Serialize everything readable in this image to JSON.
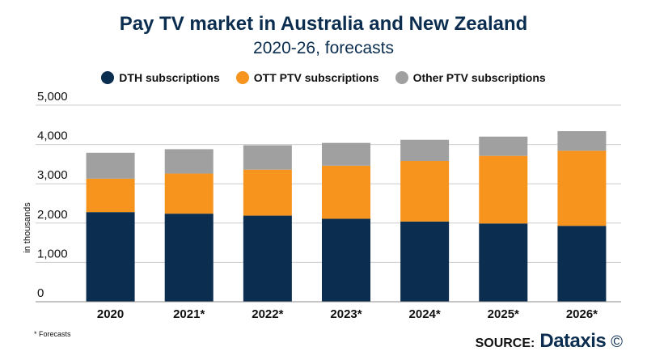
{
  "header": {
    "title": "Pay TV market in Australia and New Zealand",
    "subtitle": "2020-26, forecasts"
  },
  "chart_data": {
    "type": "bar",
    "stacked": true,
    "categories": [
      "2020",
      "2021*",
      "2022*",
      "2023*",
      "2024*",
      "2025*",
      "2026*"
    ],
    "series": [
      {
        "name": "DTH subscriptions",
        "color": "#0b2d4f",
        "values": [
          2280,
          2240,
          2190,
          2110,
          2040,
          1990,
          1930
        ]
      },
      {
        "name": "OTT PTV subscriptions",
        "color": "#f7941d",
        "values": [
          850,
          1020,
          1170,
          1350,
          1540,
          1720,
          1910
        ]
      },
      {
        "name": "Other PTV subscriptions",
        "color": "#a0a0a0",
        "values": [
          660,
          620,
          620,
          580,
          540,
          490,
          500
        ]
      }
    ],
    "ylabel": "in thousands",
    "ylim": [
      0,
      5000
    ],
    "yticks": [
      0,
      1000,
      2000,
      3000,
      4000,
      5000
    ],
    "ytick_labels": [
      "0",
      "1,000",
      "2,000",
      "3,000",
      "4,000",
      "5,000"
    ],
    "grid": true,
    "legend": "top"
  },
  "footer": {
    "footnote": "* Forecasts",
    "source_label": "SOURCE:",
    "source_brand": "Dataxis",
    "source_mark": "©"
  }
}
